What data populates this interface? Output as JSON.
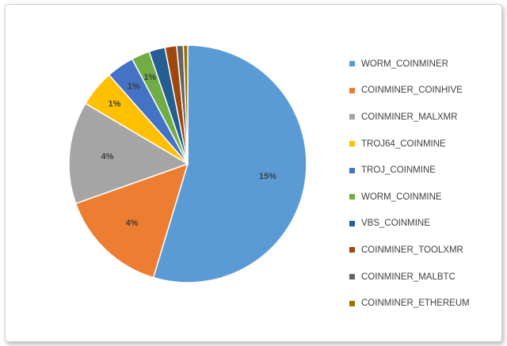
{
  "chart_data": {
    "type": "pie",
    "legend_position": "right",
    "slices": [
      {
        "name": "WORM_COINMINER",
        "value": 55.0,
        "label": "15%",
        "color": "#5b9bd5"
      },
      {
        "name": "COINMINER_COINHIVE",
        "value": 15.0,
        "label": "4%",
        "color": "#ed7d31"
      },
      {
        "name": "COINMINER_MALXMR",
        "value": 14.0,
        "label": "4%",
        "color": "#a5a5a5"
      },
      {
        "name": "TROJ64_COINMINE",
        "value": 5.0,
        "label": "1%",
        "color": "#ffc000"
      },
      {
        "name": "TROJ_COINMINE",
        "value": 3.8,
        "label": "1%",
        "color": "#4472c4"
      },
      {
        "name": "WORM_COINMINE",
        "value": 2.5,
        "label": "1%",
        "color": "#70ad47"
      },
      {
        "name": "VBS_COINMINE",
        "value": 2.2,
        "label": "",
        "color": "#255e91"
      },
      {
        "name": "COINMINER_TOOLXMR",
        "value": 1.6,
        "label": "",
        "color": "#9e480e"
      },
      {
        "name": "COINMINER_MALBTC",
        "value": 0.9,
        "label": "",
        "color": "#636363"
      },
      {
        "name": "COINMINER_ETHEREUM",
        "value": 0.6,
        "label": "",
        "color": "#997300"
      }
    ]
  }
}
